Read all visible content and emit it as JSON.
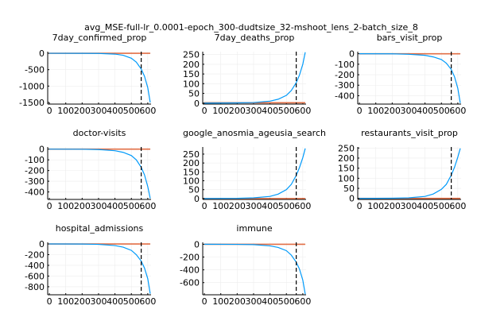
{
  "figure": {
    "suptitle": "avg_MSE-full-lr_0.0001-epoch_300-dudtsize_32-mshoot_lens_2-batch_size_8"
  },
  "colors": {
    "blue": "#009AFA",
    "orange": "#E26F46",
    "grid": "#EDEDED",
    "vline": "#000000"
  },
  "chart_data": [
    {
      "type": "line",
      "title": "7day_confirmed_prop",
      "xlim": [
        -10,
        620
      ],
      "ylim": [
        -1550,
        50
      ],
      "xticks": [
        0,
        100,
        200,
        300,
        400,
        500,
        600
      ],
      "xtick_labels": [
        "0",
        "100",
        "200",
        "300",
        "400",
        "500",
        "600"
      ],
      "yticks": [
        0,
        -500,
        -1000,
        -1500
      ],
      "ytick_labels": [
        "0",
        "-500",
        "-1000",
        "-1500"
      ],
      "vline_x": 560,
      "series": [
        {
          "color": "orange",
          "x": [
            0,
            615
          ],
          "y": [
            0,
            0
          ]
        },
        {
          "color": "blue",
          "x": [
            0,
            200,
            300,
            400,
            450,
            500,
            530,
            560,
            580,
            600,
            615
          ],
          "y": [
            0,
            -1,
            -5,
            -25,
            -60,
            -150,
            -270,
            -480,
            -700,
            -1050,
            -1500
          ]
        }
      ]
    },
    {
      "type": "line",
      "title": "7day_deaths_prop",
      "xlim": [
        -10,
        620
      ],
      "ylim": [
        -5,
        265
      ],
      "xticks": [
        0,
        100,
        200,
        300,
        400,
        500,
        600
      ],
      "xtick_labels": [
        "0",
        "100",
        "200",
        "300",
        "400",
        "500",
        "600"
      ],
      "yticks": [
        0,
        50,
        100,
        150,
        200,
        250
      ],
      "ytick_labels": [
        "0",
        "50",
        "100",
        "150",
        "200",
        "250"
      ],
      "vline_x": 560,
      "series": [
        {
          "color": "orange",
          "x": [
            0,
            615
          ],
          "y": [
            2,
            2
          ]
        },
        {
          "color": "blue",
          "x": [
            0,
            200,
            300,
            400,
            450,
            500,
            530,
            560,
            580,
            600,
            615
          ],
          "y": [
            0,
            1,
            3,
            10,
            20,
            40,
            65,
            105,
            145,
            200,
            262
          ]
        }
      ]
    },
    {
      "type": "line",
      "title": "bars_visit_prop",
      "xlim": [
        -10,
        620
      ],
      "ylim": [
        -480,
        20
      ],
      "xticks": [
        0,
        100,
        200,
        300,
        400,
        500,
        600
      ],
      "xtick_labels": [
        "0",
        "100",
        "200",
        "300",
        "400",
        "500",
        "600"
      ],
      "yticks": [
        0,
        -100,
        -200,
        -300,
        -400
      ],
      "ytick_labels": [
        "0",
        "-100",
        "-200",
        "-300",
        "-400"
      ],
      "vline_x": 560,
      "series": [
        {
          "color": "orange",
          "x": [
            0,
            615
          ],
          "y": [
            0,
            0
          ]
        },
        {
          "color": "blue",
          "x": [
            0,
            200,
            300,
            400,
            450,
            500,
            530,
            560,
            580,
            600,
            615
          ],
          "y": [
            0,
            -1,
            -5,
            -15,
            -30,
            -55,
            -90,
            -150,
            -220,
            -330,
            -470
          ]
        }
      ]
    },
    {
      "type": "line",
      "title": "doctor-visits",
      "xlim": [
        -10,
        620
      ],
      "ylim": [
        -470,
        20
      ],
      "xticks": [
        0,
        100,
        200,
        300,
        400,
        500,
        600
      ],
      "xtick_labels": [
        "0",
        "100",
        "200",
        "300",
        "400",
        "500",
        "600"
      ],
      "yticks": [
        0,
        -100,
        -200,
        -300,
        -400
      ],
      "ytick_labels": [
        "0",
        "-100",
        "-200",
        "-300",
        "-400"
      ],
      "vline_x": 560,
      "series": [
        {
          "color": "orange",
          "x": [
            0,
            615
          ],
          "y": [
            0,
            0
          ]
        },
        {
          "color": "blue",
          "x": [
            0,
            200,
            300,
            400,
            450,
            500,
            530,
            560,
            580,
            600,
            615
          ],
          "y": [
            0,
            -1,
            -4,
            -15,
            -30,
            -60,
            -100,
            -170,
            -240,
            -350,
            -460
          ]
        }
      ]
    },
    {
      "type": "line",
      "title": "google_anosmia_ageusia_search",
      "xlim": [
        -10,
        620
      ],
      "ylim": [
        -5,
        290
      ],
      "xticks": [
        0,
        100,
        200,
        300,
        400,
        500,
        600
      ],
      "xtick_labels": [
        "0",
        "100",
        "200",
        "300",
        "400",
        "500",
        "600"
      ],
      "yticks": [
        0,
        50,
        100,
        150,
        200,
        250
      ],
      "ytick_labels": [
        "0",
        "50",
        "100",
        "150",
        "200",
        "250"
      ],
      "vline_x": 560,
      "series": [
        {
          "color": "orange",
          "x": [
            0,
            615
          ],
          "y": [
            0,
            0
          ]
        },
        {
          "color": "blue",
          "x": [
            0,
            200,
            300,
            400,
            450,
            500,
            530,
            560,
            580,
            600,
            615
          ],
          "y": [
            0,
            1,
            4,
            12,
            25,
            50,
            80,
            130,
            175,
            230,
            282
          ]
        }
      ]
    },
    {
      "type": "line",
      "title": "restaurants_visit_prop",
      "xlim": [
        -10,
        620
      ],
      "ylim": [
        -5,
        255
      ],
      "xticks": [
        0,
        100,
        200,
        300,
        400,
        500,
        600
      ],
      "xtick_labels": [
        "0",
        "100",
        "200",
        "300",
        "400",
        "500",
        "600"
      ],
      "yticks": [
        0,
        50,
        100,
        150,
        200,
        250
      ],
      "ytick_labels": [
        "0",
        "50",
        "100",
        "150",
        "200",
        "250"
      ],
      "vline_x": 560,
      "series": [
        {
          "color": "orange",
          "x": [
            0,
            615
          ],
          "y": [
            0,
            0
          ]
        },
        {
          "color": "blue",
          "x": [
            0,
            200,
            300,
            400,
            450,
            500,
            530,
            560,
            580,
            600,
            615
          ],
          "y": [
            0,
            1,
            3,
            10,
            22,
            45,
            70,
            115,
            155,
            205,
            248
          ]
        }
      ]
    },
    {
      "type": "line",
      "title": "hospital_admissions",
      "xlim": [
        -10,
        620
      ],
      "ylim": [
        -950,
        30
      ],
      "xticks": [
        0,
        100,
        200,
        300,
        400,
        500,
        600
      ],
      "xtick_labels": [
        "0",
        "100",
        "200",
        "300",
        "400",
        "500",
        "600"
      ],
      "yticks": [
        0,
        -200,
        -400,
        -600,
        -800
      ],
      "ytick_labels": [
        "0",
        "-200",
        "-400",
        "-600",
        "-800"
      ],
      "vline_x": 560,
      "series": [
        {
          "color": "orange",
          "x": [
            0,
            615
          ],
          "y": [
            0,
            0
          ]
        },
        {
          "color": "blue",
          "x": [
            0,
            200,
            300,
            400,
            450,
            500,
            530,
            560,
            580,
            600,
            615
          ],
          "y": [
            0,
            -2,
            -8,
            -30,
            -60,
            -120,
            -200,
            -320,
            -450,
            -650,
            -930
          ]
        }
      ]
    },
    {
      "type": "line",
      "title": "immune",
      "xlim": [
        -10,
        620
      ],
      "ylim": [
        -790,
        30
      ],
      "xticks": [
        0,
        100,
        200,
        300,
        400,
        500,
        600
      ],
      "xtick_labels": [
        "0",
        "100",
        "200",
        "300",
        "400",
        "500",
        "600"
      ],
      "yticks": [
        0,
        -200,
        -400,
        -600
      ],
      "ytick_labels": [
        "0",
        "-200",
        "-400",
        "-600"
      ],
      "vline_x": 560,
      "series": [
        {
          "color": "orange",
          "x": [
            0,
            615
          ],
          "y": [
            0,
            0
          ]
        },
        {
          "color": "blue",
          "x": [
            0,
            200,
            300,
            400,
            450,
            500,
            530,
            560,
            580,
            600,
            615
          ],
          "y": [
            0,
            -2,
            -6,
            -25,
            -50,
            -100,
            -170,
            -280,
            -390,
            -560,
            -780
          ]
        }
      ]
    }
  ]
}
